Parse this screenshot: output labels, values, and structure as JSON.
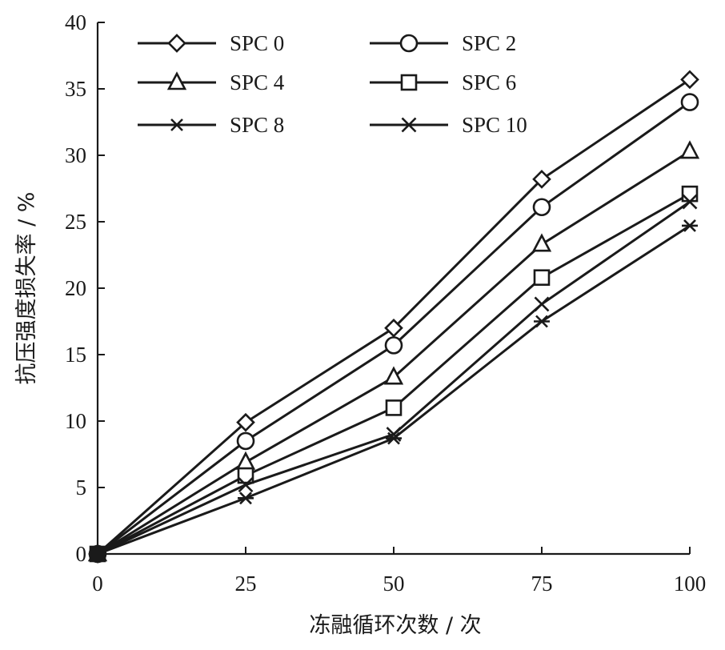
{
  "chart_data": {
    "type": "line",
    "title": "",
    "xlabel": "冻融循环次数 / 次",
    "ylabel": "抗压强度损失率 / %",
    "x": [
      0,
      25,
      50,
      75,
      100
    ],
    "x_ticks": [
      "0",
      "25",
      "50",
      "75",
      "100"
    ],
    "xlim": [
      0,
      100
    ],
    "y_ticks": [
      "0",
      "5",
      "10",
      "15",
      "20",
      "25",
      "30",
      "35",
      "40"
    ],
    "ylim": [
      0,
      40
    ],
    "grid": false,
    "legend_position": "top-left",
    "series": [
      {
        "name": "SPC 0",
        "marker": "diamond",
        "values": [
          0,
          9.9,
          17.0,
          28.2,
          35.7
        ]
      },
      {
        "name": "SPC 2",
        "marker": "circle",
        "values": [
          0,
          8.5,
          15.7,
          26.1,
          34.0
        ]
      },
      {
        "name": "SPC 4",
        "marker": "triangle",
        "values": [
          0,
          6.9,
          13.3,
          23.3,
          30.3
        ]
      },
      {
        "name": "SPC 6",
        "marker": "square",
        "values": [
          0,
          5.9,
          11.0,
          20.8,
          27.1
        ]
      },
      {
        "name": "SPC 8",
        "marker": "asterisk",
        "values": [
          0,
          4.2,
          8.7,
          17.5,
          24.7
        ]
      },
      {
        "name": "SPC 10",
        "marker": "x",
        "values": [
          0,
          5.2,
          9.0,
          18.8,
          26.5
        ]
      }
    ]
  }
}
